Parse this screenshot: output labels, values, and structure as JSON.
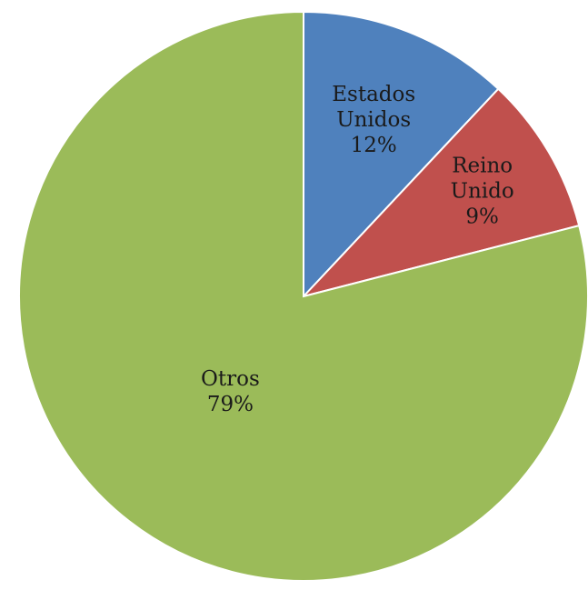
{
  "chart_data": {
    "type": "pie",
    "title": "",
    "slices": [
      {
        "label_lines": [
          "Estados",
          "Unidos"
        ],
        "percent_label": "12%",
        "value": 12,
        "color": "#4f81bd"
      },
      {
        "label_lines": [
          "Reino",
          "Unido"
        ],
        "percent_label": "9%",
        "value": 9,
        "color": "#c0504d"
      },
      {
        "label_lines": [
          "Otros"
        ],
        "percent_label": "79%",
        "value": 79,
        "color": "#9bbb59"
      }
    ],
    "start_direction": "12 o'clock",
    "rotation": "clockwise",
    "legend": "none"
  }
}
